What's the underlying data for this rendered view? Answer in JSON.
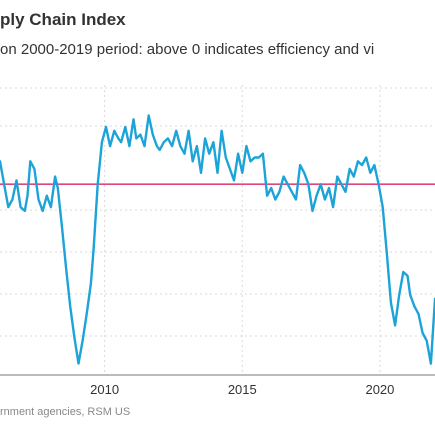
{
  "title": "ply Chain Index",
  "subtitle": "on 2000-2019 period: above 0 indicates efficiency and vi",
  "source": "rnment agencies, RSM US",
  "colors": {
    "series": "#1ca3d8",
    "reference": "#e0457b",
    "grid": "#d9d9d9",
    "baseline": "#777777"
  },
  "chart_data": {
    "type": "line",
    "title": "",
    "xlabel": "",
    "ylabel": "",
    "xlim": [
      2006.2,
      2022.0
    ],
    "ylim": [
      -2.5,
      1.3
    ],
    "x_ticks": [
      2010,
      2015,
      2020
    ],
    "x_tick_labels": [
      "2010",
      "2015",
      "2020"
    ],
    "reference_line": 0,
    "grid": {
      "x": true,
      "y": true
    },
    "series": [
      {
        "x": [
          2006.2,
          2006.35,
          2006.5,
          2006.65,
          2006.8,
          2006.95,
          2007.1,
          2007.2,
          2007.3,
          2007.45,
          2007.6,
          2007.75,
          2007.9,
          2008.05,
          2008.2,
          2008.3,
          2008.45,
          2008.6,
          2008.75,
          2008.9,
          2009.05,
          2009.2,
          2009.35,
          2009.5,
          2009.6,
          2009.75,
          2009.9,
          2010.05,
          2010.2,
          2010.35,
          2010.5,
          2010.6,
          2010.75,
          2010.9,
          2011.05,
          2011.15,
          2011.3,
          2011.45,
          2011.6,
          2011.75,
          2011.9,
          2012.0,
          2012.15,
          2012.3,
          2012.45,
          2012.6,
          2012.75,
          2012.9,
          2013.05,
          2013.2,
          2013.35,
          2013.5,
          2013.65,
          2013.8,
          2013.95,
          2014.1,
          2014.25,
          2014.4,
          2014.55,
          2014.7,
          2014.85,
          2015.0,
          2015.15,
          2015.3,
          2015.45,
          2015.6,
          2015.75,
          2015.9,
          2016.05,
          2016.2,
          2016.35,
          2016.5,
          2016.65,
          2016.8,
          2016.95,
          2017.1,
          2017.25,
          2017.4,
          2017.55,
          2017.7,
          2017.85,
          2018.0,
          2018.15,
          2018.3,
          2018.45,
          2018.6,
          2018.75,
          2018.9,
          2019.05,
          2019.2,
          2019.35,
          2019.5,
          2019.65,
          2019.8,
          2019.95,
          2020.1,
          2020.25,
          2020.4,
          2020.55,
          2020.7,
          2020.85,
          2021.0,
          2021.1,
          2021.25,
          2021.4,
          2021.55,
          2021.7,
          2021.85,
          2022.0
        ],
        "values": [
          0.3,
          0.0,
          -0.3,
          -0.2,
          0.05,
          -0.3,
          -0.35,
          -0.15,
          0.3,
          0.2,
          -0.2,
          -0.35,
          -0.15,
          -0.3,
          0.1,
          -0.05,
          -0.55,
          -1.1,
          -1.6,
          -2.0,
          -2.35,
          -2.05,
          -1.7,
          -1.3,
          -0.85,
          0.0,
          0.55,
          0.75,
          0.5,
          0.7,
          0.6,
          0.55,
          0.75,
          0.5,
          0.85,
          0.6,
          0.65,
          0.5,
          0.9,
          0.65,
          0.5,
          0.45,
          0.55,
          0.6,
          0.5,
          0.7,
          0.5,
          0.4,
          0.7,
          0.3,
          0.5,
          0.15,
          0.6,
          0.4,
          0.55,
          0.15,
          0.7,
          0.35,
          0.2,
          0.05,
          0.4,
          0.15,
          0.5,
          0.3,
          0.35,
          0.35,
          0.4,
          -0.15,
          -0.05,
          -0.2,
          -0.1,
          0.1,
          0.0,
          -0.1,
          -0.2,
          0.25,
          0.15,
          0.0,
          -0.35,
          -0.15,
          0.0,
          -0.2,
          -0.05,
          -0.3,
          0.1,
          0.0,
          -0.1,
          0.2,
          0.1,
          0.3,
          0.25,
          0.35,
          0.15,
          0.25,
          0.0,
          -0.3,
          -0.9,
          -1.55,
          -1.85,
          -1.45,
          -1.15,
          -1.2,
          -1.45,
          -1.6,
          -1.7,
          -1.95,
          -2.05,
          -2.35,
          -1.5
        ]
      }
    ]
  }
}
